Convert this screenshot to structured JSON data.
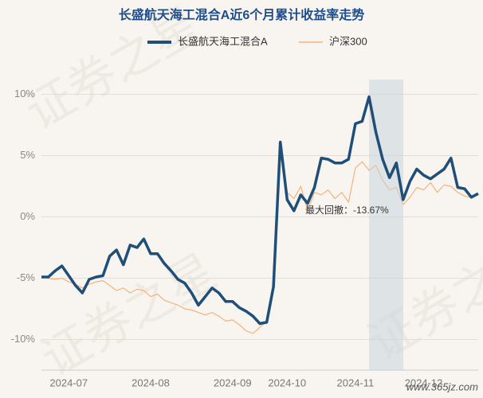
{
  "chart_data": {
    "type": "line",
    "title": "长盛航天海工混合A近6个月累计收益率走势",
    "categories": [
      null,
      null,
      null,
      null,
      "2024-07",
      null,
      null,
      null,
      null,
      null,
      null,
      null,
      null,
      null,
      null,
      null,
      "2024-08",
      null,
      null,
      null,
      null,
      null,
      null,
      null,
      null,
      null,
      null,
      null,
      "2024-09",
      null,
      null,
      null,
      null,
      null,
      null,
      null,
      "2024-10",
      null,
      null,
      null,
      null,
      null,
      null,
      null,
      null,
      null,
      "2024-11",
      null,
      null,
      null,
      null,
      null,
      null,
      null,
      null,
      null,
      "2024-12",
      null,
      null,
      null,
      null,
      null,
      null,
      null,
      null
    ],
    "series": [
      {
        "name": "长盛航天海工混合A",
        "color": "#1f4e79",
        "values": [
          -4.9,
          -4.9,
          -4.4,
          -4.0,
          -4.8,
          -5.6,
          -6.2,
          -5.1,
          -4.9,
          -4.8,
          -3.2,
          -2.7,
          -3.9,
          -2.3,
          -2.5,
          -1.8,
          -3.0,
          -3.0,
          -3.8,
          -4.4,
          -5.1,
          -5.4,
          -6.2,
          -7.2,
          -6.5,
          -5.8,
          -6.2,
          -6.9,
          -6.9,
          -7.4,
          -7.7,
          -8.1,
          -8.7,
          -8.6,
          -5.7,
          6.1,
          1.4,
          0.5,
          1.8,
          1.1,
          2.4,
          4.8,
          4.7,
          4.4,
          4.4,
          4.7,
          7.6,
          7.8,
          9.8,
          6.9,
          4.7,
          3.2,
          4.4,
          1.4,
          2.9,
          3.9,
          3.4,
          3.1,
          3.5,
          3.9,
          4.8,
          2.4,
          2.3,
          1.6,
          1.9
        ]
      },
      {
        "name": "沪深300",
        "color": "#f5b27a",
        "values": [
          -4.9,
          -5.0,
          -5.1,
          -5.0,
          -5.3,
          -5.5,
          -5.8,
          -5.5,
          -5.3,
          -5.2,
          -5.6,
          -6.0,
          -5.8,
          -6.2,
          -5.9,
          -6.0,
          -6.5,
          -6.3,
          -6.8,
          -7.0,
          -7.2,
          -7.5,
          -7.6,
          -7.8,
          -8.0,
          -7.8,
          -8.1,
          -8.5,
          -8.4,
          -8.8,
          -9.3,
          -9.5,
          -9.0,
          -8.5,
          -5.5,
          6.0,
          2.0,
          1.5,
          2.5,
          0.5,
          2.0,
          1.8,
          2.2,
          1.5,
          2.0,
          1.2,
          4.0,
          4.5,
          3.8,
          4.2,
          3.0,
          2.2,
          2.4,
          1.0,
          1.6,
          2.4,
          2.2,
          2.8,
          2.0,
          2.6,
          2.5,
          2.0,
          1.7,
          1.6,
          1.8
        ]
      }
    ],
    "ylim": [
      -12.5,
      11.2
    ],
    "yticks": [
      {
        "value": -10,
        "label": "-10%"
      },
      {
        "value": -5,
        "label": "-5%"
      },
      {
        "value": 0,
        "label": "0%"
      },
      {
        "value": 5,
        "label": "5%"
      },
      {
        "value": 10,
        "label": "10%"
      }
    ],
    "grid": true,
    "annotation": "最大回撤：-13.67%",
    "watermark": "证券之星",
    "footer": "www.365jz.com"
  }
}
